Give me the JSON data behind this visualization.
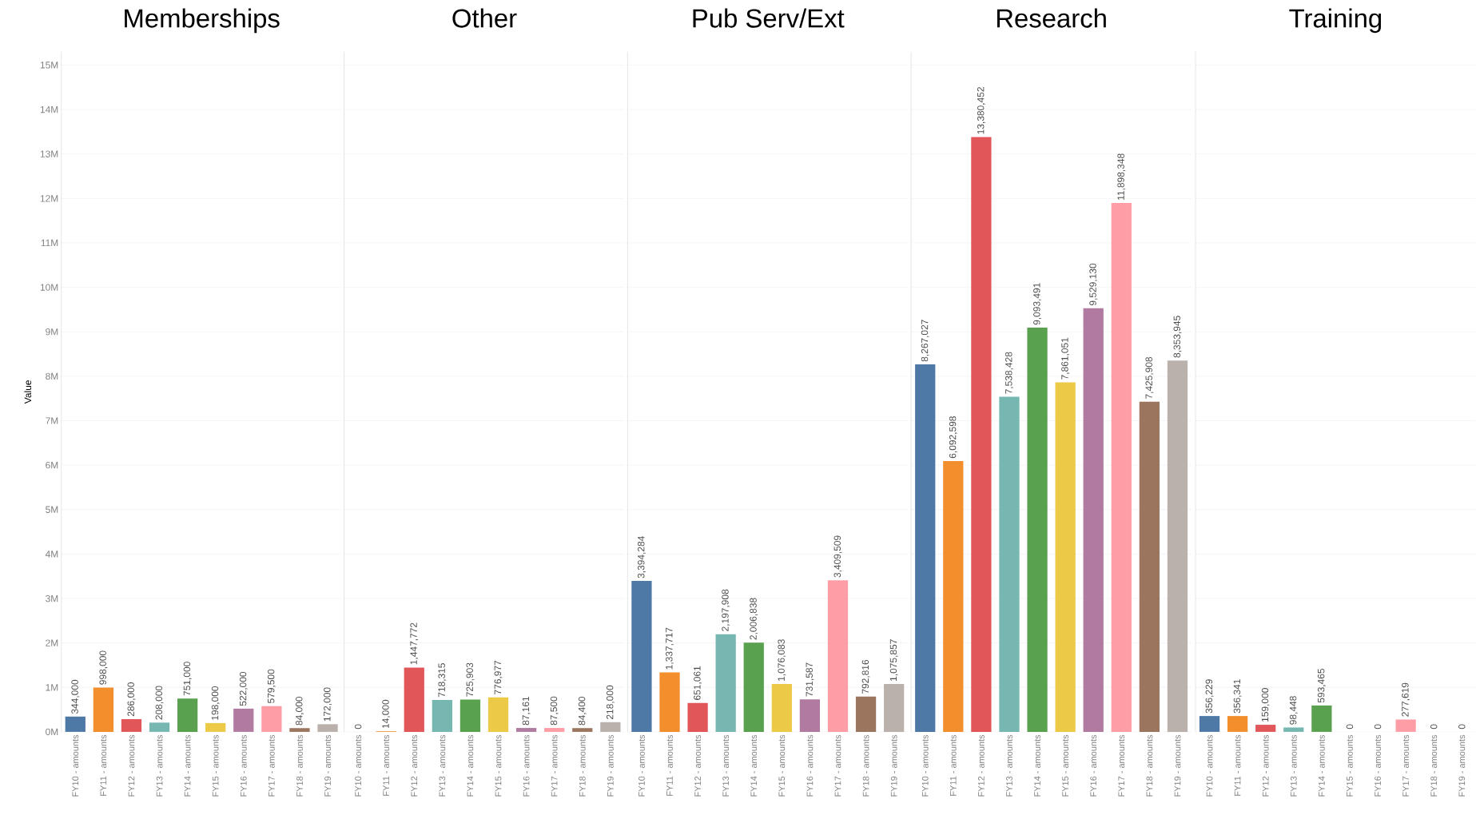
{
  "chart_data": [
    {
      "type": "bar",
      "title": "Memberships",
      "ylabel": "Value",
      "categories": [
        "FY10 - amounts",
        "FY11 - amounts",
        "FY12 - amounts",
        "FY13 - amounts",
        "FY14 - amounts",
        "FY15 - amounts",
        "FY16 - amounts",
        "FY17 - amounts",
        "FY18 - amounts",
        "FY19 - amounts"
      ],
      "values": [
        344000,
        998000,
        286000,
        208000,
        751000,
        198000,
        522000,
        579500,
        84000,
        172000
      ],
      "value_labels": [
        "344,000",
        "998,000",
        "286,000",
        "208,000",
        "751,000",
        "198,000",
        "522,000",
        "579,500",
        "84,000",
        "172,000"
      ],
      "colors": [
        "#4e79a7",
        "#f28e2b",
        "#e15759",
        "#76b7b2",
        "#59a14f",
        "#edc948",
        "#b07aa1",
        "#ff9da7",
        "#9c755f",
        "#bab0ac"
      ],
      "ylim": [
        0,
        15300000
      ],
      "yticks": [
        {
          "value": 0,
          "label": "0M"
        },
        {
          "value": 1000000,
          "label": "1M"
        },
        {
          "value": 2000000,
          "label": "2M"
        },
        {
          "value": 3000000,
          "label": "3M"
        },
        {
          "value": 4000000,
          "label": "4M"
        },
        {
          "value": 5000000,
          "label": "5M"
        },
        {
          "value": 6000000,
          "label": "6M"
        },
        {
          "value": 7000000,
          "label": "7M"
        },
        {
          "value": 8000000,
          "label": "8M"
        },
        {
          "value": 9000000,
          "label": "9M"
        },
        {
          "value": 10000000,
          "label": "10M"
        },
        {
          "value": 11000000,
          "label": "11M"
        },
        {
          "value": 12000000,
          "label": "12M"
        },
        {
          "value": 13000000,
          "label": "13M"
        },
        {
          "value": 14000000,
          "label": "14M"
        },
        {
          "value": 15000000,
          "label": "15M"
        }
      ],
      "grid": "y"
    },
    {
      "type": "bar",
      "title": "Other",
      "categories": [
        "FY10 - amounts",
        "FY11 - amounts",
        "FY12 - amounts",
        "FY13 - amounts",
        "FY14 - amounts",
        "FY15 - amounts",
        "FY16 - amounts",
        "FY17 - amounts",
        "FY18 - amounts",
        "FY19 - amounts"
      ],
      "values": [
        0,
        14000,
        1447772,
        718315,
        725903,
        776977,
        87161,
        87500,
        84400,
        218000
      ],
      "value_labels": [
        "0",
        "14,000",
        "1,447,772",
        "718,315",
        "725,903",
        "776,977",
        "87,161",
        "87,500",
        "84,400",
        "218,000"
      ],
      "colors": [
        "#4e79a7",
        "#f28e2b",
        "#e15759",
        "#76b7b2",
        "#59a14f",
        "#edc948",
        "#b07aa1",
        "#ff9da7",
        "#9c755f",
        "#bab0ac"
      ],
      "ylim": [
        0,
        15300000
      ],
      "yticks": [
        {
          "value": 0,
          "label": null
        },
        {
          "value": 1000000,
          "label": null
        },
        {
          "value": 2000000,
          "label": null
        },
        {
          "value": 3000000,
          "label": null
        },
        {
          "value": 4000000,
          "label": null
        },
        {
          "value": 5000000,
          "label": null
        },
        {
          "value": 6000000,
          "label": null
        },
        {
          "value": 7000000,
          "label": null
        },
        {
          "value": 8000000,
          "label": null
        },
        {
          "value": 9000000,
          "label": null
        },
        {
          "value": 10000000,
          "label": null
        },
        {
          "value": 11000000,
          "label": null
        },
        {
          "value": 12000000,
          "label": null
        },
        {
          "value": 13000000,
          "label": null
        },
        {
          "value": 14000000,
          "label": null
        },
        {
          "value": 15000000,
          "label": null
        }
      ],
      "grid": "y",
      "tick_labels": "x"
    },
    {
      "type": "bar",
      "title": "Pub Serv/Ext",
      "categories": [
        "FY10 - amounts",
        "FY11 - amounts",
        "FY12 - amounts",
        "FY13 - amounts",
        "FY14 - amounts",
        "FY15 - amounts",
        "FY16 - amounts",
        "FY17 - amounts",
        "FY18 - amounts",
        "FY19 - amounts"
      ],
      "values": [
        3394284,
        1337717,
        651061,
        2197908,
        2006838,
        1076083,
        731587,
        3409509,
        792816,
        1075857
      ],
      "value_labels": [
        "3,394,284",
        "1,337,717",
        "651,061",
        "2,197,908",
        "2,006,838",
        "1,076,083",
        "731,587",
        "3,409,509",
        "792,816",
        "1,075,857"
      ],
      "colors": [
        "#4e79a7",
        "#f28e2b",
        "#e15759",
        "#76b7b2",
        "#59a14f",
        "#edc948",
        "#b07aa1",
        "#ff9da7",
        "#9c755f",
        "#bab0ac"
      ],
      "ylim": [
        0,
        15300000
      ],
      "yticks": [
        {
          "value": 0,
          "label": null
        },
        {
          "value": 1000000,
          "label": null
        },
        {
          "value": 2000000,
          "label": null
        },
        {
          "value": 3000000,
          "label": null
        },
        {
          "value": 4000000,
          "label": null
        },
        {
          "value": 5000000,
          "label": null
        },
        {
          "value": 6000000,
          "label": null
        },
        {
          "value": 7000000,
          "label": null
        },
        {
          "value": 8000000,
          "label": null
        },
        {
          "value": 9000000,
          "label": null
        },
        {
          "value": 10000000,
          "label": null
        },
        {
          "value": 11000000,
          "label": null
        },
        {
          "value": 12000000,
          "label": null
        },
        {
          "value": 13000000,
          "label": null
        },
        {
          "value": 14000000,
          "label": null
        },
        {
          "value": 15000000,
          "label": null
        }
      ],
      "grid": "y",
      "tick_labels": "x"
    },
    {
      "type": "bar",
      "title": "Research",
      "categories": [
        "FY10 - amounts",
        "FY11 - amounts",
        "FY12 - amounts",
        "FY13 - amounts",
        "FY14 - amounts",
        "FY15 - amounts",
        "FY16 - amounts",
        "FY17 - amounts",
        "FY18 - amounts",
        "FY19 - amounts"
      ],
      "values": [
        8267027,
        6092598,
        13380452,
        7538428,
        9093491,
        7861051,
        9529130,
        11898348,
        7425908,
        8353945
      ],
      "value_labels": [
        "8,267,027",
        "6,092,598",
        "13,380,452",
        "7,538,428",
        "9,093,491",
        "7,861,051",
        "9,529,130",
        "11,898,348",
        "7,425,908",
        "8,353,945"
      ],
      "colors": [
        "#4e79a7",
        "#f28e2b",
        "#e15759",
        "#76b7b2",
        "#59a14f",
        "#edc948",
        "#b07aa1",
        "#ff9da7",
        "#9c755f",
        "#bab0ac"
      ],
      "ylim": [
        0,
        15300000
      ],
      "yticks": [
        {
          "value": 0,
          "label": null
        },
        {
          "value": 1000000,
          "label": null
        },
        {
          "value": 2000000,
          "label": null
        },
        {
          "value": 3000000,
          "label": null
        },
        {
          "value": 4000000,
          "label": null
        },
        {
          "value": 5000000,
          "label": null
        },
        {
          "value": 6000000,
          "label": null
        },
        {
          "value": 7000000,
          "label": null
        },
        {
          "value": 8000000,
          "label": null
        },
        {
          "value": 9000000,
          "label": null
        },
        {
          "value": 10000000,
          "label": null
        },
        {
          "value": 11000000,
          "label": null
        },
        {
          "value": 12000000,
          "label": null
        },
        {
          "value": 13000000,
          "label": null
        },
        {
          "value": 14000000,
          "label": null
        },
        {
          "value": 15000000,
          "label": null
        }
      ],
      "grid": "y",
      "tick_labels": "x"
    },
    {
      "type": "bar",
      "title": "Training",
      "categories": [
        "FY10 - amounts",
        "FY11 - amounts",
        "FY12 - amounts",
        "FY13 - amounts",
        "FY14 - amounts",
        "FY15 - amounts",
        "FY16 - amounts",
        "FY17 - amounts",
        "FY18 - amounts",
        "FY19 - amounts"
      ],
      "values": [
        356229,
        356341,
        159000,
        98448,
        593465,
        0,
        0,
        277619,
        0,
        0
      ],
      "value_labels": [
        "356,229",
        "356,341",
        "159,000",
        "98,448",
        "593,465",
        "0",
        "0",
        "277,619",
        "0",
        "0"
      ],
      "colors": [
        "#4e79a7",
        "#f28e2b",
        "#e15759",
        "#76b7b2",
        "#59a14f",
        "#edc948",
        "#b07aa1",
        "#ff9da7",
        "#9c755f",
        "#bab0ac"
      ],
      "ylim": [
        0,
        15300000
      ],
      "yticks": [
        {
          "value": 0,
          "label": null
        },
        {
          "value": 1000000,
          "label": null
        },
        {
          "value": 2000000,
          "label": null
        },
        {
          "value": 3000000,
          "label": null
        },
        {
          "value": 4000000,
          "label": null
        },
        {
          "value": 5000000,
          "label": null
        },
        {
          "value": 6000000,
          "label": null
        },
        {
          "value": 7000000,
          "label": null
        },
        {
          "value": 8000000,
          "label": null
        },
        {
          "value": 9000000,
          "label": null
        },
        {
          "value": 10000000,
          "label": null
        },
        {
          "value": 11000000,
          "label": null
        },
        {
          "value": 12000000,
          "label": null
        },
        {
          "value": 13000000,
          "label": null
        },
        {
          "value": 14000000,
          "label": null
        },
        {
          "value": 15000000,
          "label": null
        }
      ],
      "grid": "y",
      "tick_labels": "x"
    }
  ]
}
